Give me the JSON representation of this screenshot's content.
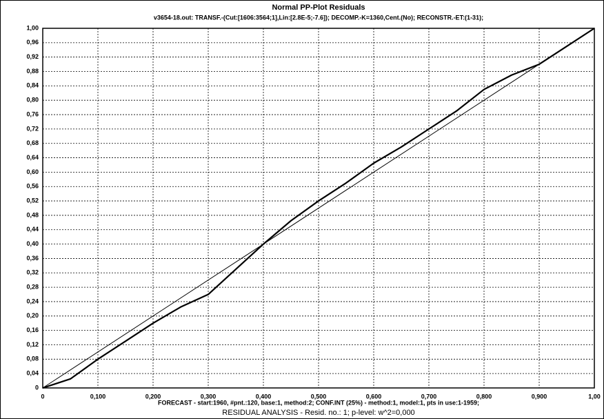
{
  "chart_data": {
    "type": "line",
    "title": "Normal PP-Plot Residuals",
    "subtitle": "v3654-18.out:   TRANSF.-(Cut:[1606:3564;1],Lin:[2.8E-5;-7.6]);   DECOMP.-K=1360,Cent.(No);   RECONSTR.-ET:(1-31);",
    "annotations": [
      "FORECAST - start:1960, #pnt.:120, base:1, method:2;  CONF.INT (25%) - method:1, model:1, pts in use:1-1959;",
      "RESIDUAL ANALYSIS - Resid. no.: 1;  p-level: w^2=0,000"
    ],
    "xlim": [
      0,
      1
    ],
    "ylim": [
      0,
      1
    ],
    "xticks": [
      0,
      {
        "value": 0.1,
        "label": "0,100"
      },
      {
        "value": 0.2,
        "label": "0,200"
      },
      {
        "value": 0.3,
        "label": "0,300"
      },
      {
        "value": 0.4,
        "label": "0,400"
      },
      {
        "value": 0.5,
        "label": "0,500"
      },
      {
        "value": 0.6,
        "label": "0,600"
      },
      {
        "value": 0.7,
        "label": "0,700"
      },
      {
        "value": 0.8,
        "label": "0,800"
      },
      {
        "value": 0.9,
        "label": "0,900"
      },
      {
        "value": 1,
        "label": "1,00"
      }
    ],
    "yticks": [
      0,
      {
        "value": 0.04,
        "label": "0,04"
      },
      {
        "value": 0.08,
        "label": "0,08"
      },
      {
        "value": 0.12,
        "label": "0,12"
      },
      {
        "value": 0.16,
        "label": "0,16"
      },
      {
        "value": 0.2,
        "label": "0,20"
      },
      {
        "value": 0.24,
        "label": "0,24"
      },
      {
        "value": 0.28,
        "label": "0,28"
      },
      {
        "value": 0.32,
        "label": "0,32"
      },
      {
        "value": 0.36,
        "label": "0,36"
      },
      {
        "value": 0.4,
        "label": "0,40"
      },
      {
        "value": 0.44,
        "label": "0,44"
      },
      {
        "value": 0.48,
        "label": "0,48"
      },
      {
        "value": 0.52,
        "label": "0,52"
      },
      {
        "value": 0.56,
        "label": "0,56"
      },
      {
        "value": 0.6,
        "label": "0,60"
      },
      {
        "value": 0.64,
        "label": "0,64"
      },
      {
        "value": 0.68,
        "label": "0,68"
      },
      {
        "value": 0.72,
        "label": "0,72"
      },
      {
        "value": 0.76,
        "label": "0,76"
      },
      {
        "value": 0.8,
        "label": "0,80"
      },
      {
        "value": 0.84,
        "label": "0,84"
      },
      {
        "value": 0.88,
        "label": "0,88"
      },
      {
        "value": 0.92,
        "label": "0,92"
      },
      {
        "value": 0.96,
        "label": "0,96"
      },
      {
        "value": 1,
        "label": "1,00"
      }
    ],
    "grid": true,
    "series": [
      {
        "color": "#000000",
        "width": 2.2,
        "x": [
          0,
          0.02,
          0.05,
          0.1,
          0.15,
          0.2,
          0.25,
          0.3,
          0.35,
          0.4,
          0.45,
          0.5,
          0.55,
          0.6,
          0.65,
          0.7,
          0.75,
          0.8,
          0.85,
          0.9,
          0.95,
          1
        ],
        "values": [
          0,
          0.01,
          0.025,
          0.08,
          0.13,
          0.18,
          0.225,
          0.26,
          0.33,
          0.4,
          0.465,
          0.52,
          0.57,
          0.625,
          0.67,
          0.72,
          0.77,
          0.83,
          0.87,
          0.9,
          0.95,
          1
        ]
      },
      {
        "color": "#000000",
        "width": 1,
        "x": [
          0,
          1
        ],
        "values": [
          0,
          1
        ]
      }
    ]
  }
}
